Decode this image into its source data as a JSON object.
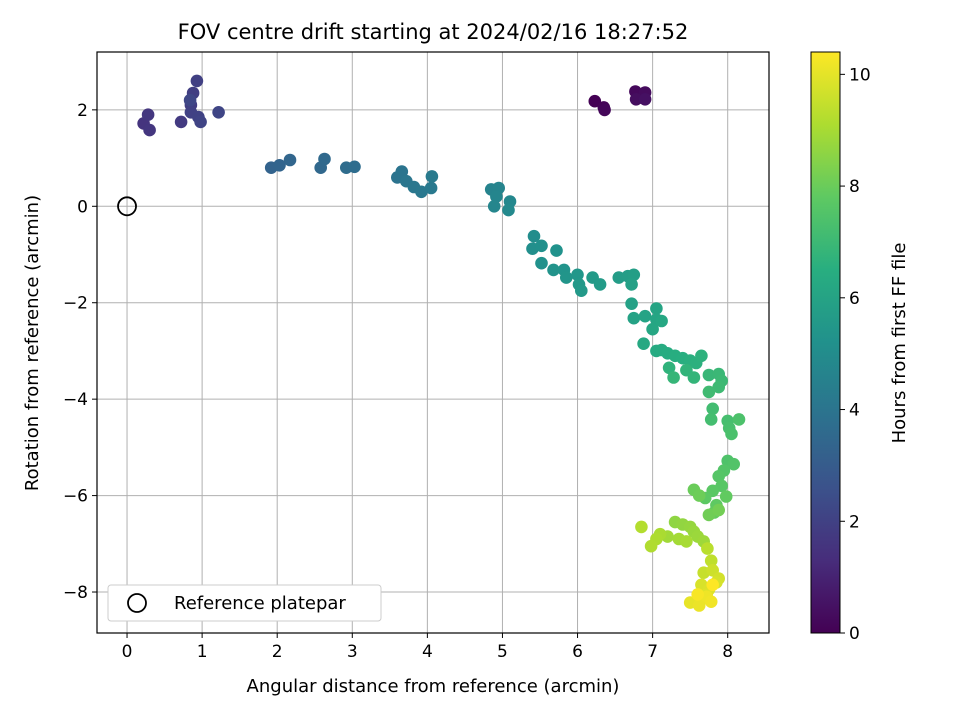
{
  "chart_data": {
    "type": "scatter",
    "title": "FOV centre drift starting at 2024/02/16 18:27:52",
    "xlabel": "Angular distance from reference (arcmin)",
    "ylabel": "Rotation from reference (arcmin)",
    "xlim": [
      -0.4,
      8.55
    ],
    "ylim": [
      -8.85,
      3.2
    ],
    "xticks": [
      "0",
      "1",
      "2",
      "3",
      "4",
      "5",
      "6",
      "7",
      "8"
    ],
    "yticks": [
      "−8",
      "−6",
      "−4",
      "−2",
      "0",
      "2"
    ],
    "grid": true,
    "legend": {
      "position": "lower-left",
      "entries": [
        "Reference platepar"
      ]
    },
    "reference_point": {
      "x": 0,
      "y": 0
    },
    "colorbar": {
      "label": "Hours from first FF file",
      "range": [
        0,
        10.4
      ],
      "ticks": [
        "0",
        "2",
        "4",
        "6",
        "8",
        "10"
      ],
      "colormap": "viridis"
    },
    "points": [
      [
        6.23,
        2.18,
        0.0
      ],
      [
        6.35,
        2.05,
        0.08
      ],
      [
        6.36,
        2.0,
        0.15
      ],
      [
        6.77,
        2.38,
        0.22
      ],
      [
        6.9,
        2.36,
        0.3
      ],
      [
        6.78,
        2.22,
        0.38
      ],
      [
        6.9,
        2.22,
        0.45
      ],
      [
        0.22,
        1.72,
        1.55
      ],
      [
        0.3,
        1.58,
        1.6
      ],
      [
        0.28,
        1.9,
        1.65
      ],
      [
        0.72,
        1.75,
        1.75
      ],
      [
        0.85,
        2.1,
        1.85
      ],
      [
        0.88,
        2.35,
        1.9
      ],
      [
        0.93,
        2.6,
        1.95
      ],
      [
        0.85,
        1.95,
        2.0
      ],
      [
        0.95,
        1.85,
        2.05
      ],
      [
        0.98,
        1.75,
        2.1
      ],
      [
        1.22,
        1.95,
        2.15
      ],
      [
        0.84,
        2.2,
        2.2
      ],
      [
        1.92,
        0.8,
        3.3
      ],
      [
        2.03,
        0.85,
        3.35
      ],
      [
        2.17,
        0.96,
        3.4
      ],
      [
        2.58,
        0.8,
        3.5
      ],
      [
        2.63,
        0.98,
        3.55
      ],
      [
        2.92,
        0.8,
        3.65
      ],
      [
        3.03,
        0.82,
        3.7
      ],
      [
        3.6,
        0.6,
        3.95
      ],
      [
        3.66,
        0.72,
        4.0
      ],
      [
        3.72,
        0.52,
        4.05
      ],
      [
        3.82,
        0.4,
        4.1
      ],
      [
        3.92,
        0.3,
        4.15
      ],
      [
        4.05,
        0.38,
        4.2
      ],
      [
        4.06,
        0.62,
        4.25
      ],
      [
        4.85,
        0.35,
        4.6
      ],
      [
        4.95,
        0.38,
        4.65
      ],
      [
        4.92,
        0.2,
        4.7
      ],
      [
        4.89,
        0.0,
        4.75
      ],
      [
        5.1,
        0.1,
        4.8
      ],
      [
        5.08,
        -0.08,
        4.85
      ],
      [
        5.42,
        -0.62,
        5.05
      ],
      [
        5.4,
        -0.88,
        5.1
      ],
      [
        5.52,
        -0.82,
        5.15
      ],
      [
        5.52,
        -1.18,
        5.2
      ],
      [
        5.72,
        -0.92,
        5.25
      ],
      [
        5.68,
        -1.32,
        5.3
      ],
      [
        5.82,
        -1.32,
        5.35
      ],
      [
        5.85,
        -1.48,
        5.4
      ],
      [
        6.0,
        -1.42,
        5.45
      ],
      [
        6.02,
        -1.62,
        5.5
      ],
      [
        6.05,
        -1.75,
        5.55
      ],
      [
        6.2,
        -1.48,
        5.6
      ],
      [
        6.3,
        -1.62,
        5.65
      ],
      [
        6.55,
        -1.48,
        5.7
      ],
      [
        6.67,
        -1.45,
        5.75
      ],
      [
        6.75,
        -1.42,
        5.8
      ],
      [
        6.72,
        -1.62,
        5.85
      ],
      [
        6.72,
        -2.02,
        5.9
      ],
      [
        6.75,
        -2.32,
        5.95
      ],
      [
        6.9,
        -2.28,
        6.0
      ],
      [
        7.05,
        -2.12,
        6.05
      ],
      [
        7.05,
        -2.35,
        6.1
      ],
      [
        7.0,
        -2.55,
        6.15
      ],
      [
        7.12,
        -2.38,
        6.2
      ],
      [
        6.88,
        -2.85,
        6.25
      ],
      [
        7.05,
        -3.0,
        6.3
      ],
      [
        7.12,
        -2.98,
        6.35
      ],
      [
        7.2,
        -3.05,
        6.4
      ],
      [
        7.3,
        -3.1,
        6.45
      ],
      [
        7.4,
        -3.15,
        6.5
      ],
      [
        7.5,
        -3.2,
        6.55
      ],
      [
        7.58,
        -3.25,
        6.6
      ],
      [
        7.65,
        -3.1,
        6.65
      ],
      [
        7.22,
        -3.35,
        6.7
      ],
      [
        7.45,
        -3.4,
        6.75
      ],
      [
        7.55,
        -3.55,
        6.8
      ],
      [
        7.28,
        -3.55,
        6.85
      ],
      [
        7.75,
        -3.5,
        6.9
      ],
      [
        7.88,
        -3.48,
        6.95
      ],
      [
        7.92,
        -3.62,
        7.0
      ],
      [
        7.88,
        -3.75,
        7.05
      ],
      [
        7.75,
        -3.85,
        7.1
      ],
      [
        7.8,
        -4.2,
        7.15
      ],
      [
        7.78,
        -4.42,
        7.2
      ],
      [
        8.0,
        -4.45,
        7.25
      ],
      [
        8.02,
        -4.6,
        7.3
      ],
      [
        8.05,
        -4.72,
        7.35
      ],
      [
        8.15,
        -4.42,
        7.4
      ],
      [
        8.0,
        -5.28,
        7.45
      ],
      [
        8.08,
        -5.35,
        7.5
      ],
      [
        7.95,
        -5.48,
        7.55
      ],
      [
        7.88,
        -5.6,
        7.6
      ],
      [
        7.92,
        -5.8,
        7.65
      ],
      [
        7.8,
        -5.9,
        7.7
      ],
      [
        7.7,
        -6.05,
        7.75
      ],
      [
        7.85,
        -6.2,
        7.8
      ],
      [
        7.98,
        -6.02,
        7.85
      ],
      [
        7.82,
        -6.35,
        7.9
      ],
      [
        7.55,
        -5.88,
        8.0
      ],
      [
        7.62,
        -6.0,
        8.05
      ],
      [
        7.75,
        -6.4,
        8.1
      ],
      [
        7.88,
        -6.3,
        8.15
      ],
      [
        7.3,
        -6.55,
        8.6
      ],
      [
        7.4,
        -6.6,
        8.65
      ],
      [
        7.5,
        -6.65,
        8.7
      ],
      [
        7.55,
        -6.75,
        8.75
      ],
      [
        7.6,
        -6.85,
        8.8
      ],
      [
        7.68,
        -6.95,
        8.85
      ],
      [
        7.2,
        -6.85,
        8.9
      ],
      [
        7.35,
        -6.9,
        8.95
      ],
      [
        7.45,
        -6.95,
        9.0
      ],
      [
        7.1,
        -6.8,
        9.05
      ],
      [
        7.05,
        -6.9,
        9.1
      ],
      [
        6.98,
        -7.05,
        9.15
      ],
      [
        6.85,
        -6.65,
        9.2
      ],
      [
        7.73,
        -7.1,
        9.3
      ],
      [
        7.78,
        -7.35,
        9.4
      ],
      [
        7.68,
        -7.6,
        9.5
      ],
      [
        7.8,
        -7.55,
        9.6
      ],
      [
        7.88,
        -7.72,
        9.7
      ],
      [
        7.85,
        -7.8,
        9.75
      ],
      [
        7.65,
        -7.85,
        9.8
      ],
      [
        7.75,
        -7.95,
        9.85
      ],
      [
        7.72,
        -8.05,
        9.9
      ],
      [
        7.65,
        -8.15,
        9.95
      ],
      [
        7.6,
        -8.2,
        10.0
      ],
      [
        7.5,
        -8.22,
        10.05
      ],
      [
        7.62,
        -8.28,
        10.1
      ],
      [
        7.72,
        -8.1,
        10.15
      ],
      [
        7.78,
        -8.2,
        10.2
      ],
      [
        7.6,
        -8.05,
        10.3
      ],
      [
        7.8,
        -7.85,
        10.4
      ]
    ]
  }
}
